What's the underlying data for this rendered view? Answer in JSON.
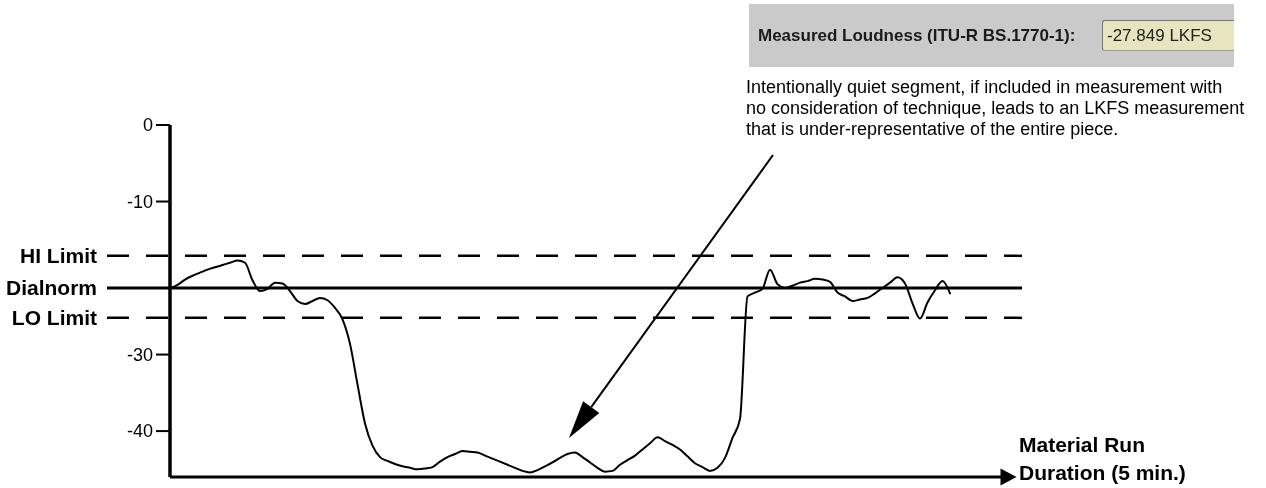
{
  "chart_data": {
    "type": "line",
    "categories": [
      null,
      null,
      null,
      null,
      null,
      null,
      null,
      null,
      null,
      null,
      null,
      null,
      null,
      null,
      null,
      null,
      null,
      null,
      null,
      null,
      null,
      null,
      null,
      null,
      null,
      null,
      null,
      null,
      null,
      null,
      null,
      null,
      null,
      null,
      null,
      null,
      null,
      null,
      null,
      null,
      null,
      null,
      null,
      null,
      null,
      null,
      null,
      null,
      null,
      null,
      null,
      null,
      null,
      null,
      null,
      null,
      null,
      null,
      null,
      null,
      null,
      null,
      null,
      null,
      null,
      null,
      null,
      null,
      null,
      null,
      null,
      null,
      null,
      null,
      null,
      null,
      null,
      null,
      null,
      null,
      null,
      null,
      null,
      null,
      null,
      null,
      null,
      null,
      null,
      null,
      null,
      null,
      null,
      null,
      null,
      null,
      null,
      null,
      null,
      null,
      null,
      null,
      null,
      null,
      null,
      null,
      null,
      null,
      null,
      null,
      null,
      null
    ],
    "values": [
      -21.3,
      -20.9,
      -20.2,
      -19.7,
      -19.3,
      -18.9,
      -18.6,
      -18.3,
      -18.0,
      -17.7,
      -18.0,
      -20.3,
      -21.7,
      -21.4,
      -20.6,
      -20.7,
      -21.7,
      -23.0,
      -23.4,
      -23.0,
      -22.6,
      -22.9,
      -23.9,
      -25.4,
      -28.6,
      -33.9,
      -39.0,
      -41.9,
      -43.4,
      -43.9,
      -44.3,
      -44.6,
      -44.8,
      -45.0,
      -44.9,
      -44.7,
      -44.0,
      -43.4,
      -43.0,
      -42.6,
      -42.7,
      -42.8,
      -43.2,
      -43.6,
      -44.0,
      -44.4,
      -44.8,
      -45.2,
      -45.4,
      -45.1,
      -44.6,
      -44.1,
      -43.5,
      -43.0,
      -42.8,
      -43.4,
      -44.1,
      -44.8,
      -45.3,
      -45.2,
      -44.4,
      -43.8,
      -43.2,
      -42.4,
      -41.6,
      -40.8,
      -41.3,
      -41.8,
      -42.4,
      -43.3,
      -44.2,
      -44.7,
      -45.2,
      -44.8,
      -43.5,
      -40.9,
      -38.4,
      -22.4,
      -21.9,
      -21.4,
      -18.9,
      -20.8,
      -21.3,
      -21.0,
      -20.6,
      -20.4,
      -20.1,
      -20.2,
      -20.5,
      -21.9,
      -22.4,
      -23.0,
      -22.8,
      -22.6,
      -22.0,
      -21.3,
      -20.6,
      -19.9,
      -20.7,
      -23.3,
      -25.3,
      -23.2,
      -21.6,
      -20.4,
      -22.0,
      null,
      null,
      null,
      null,
      null,
      null,
      null
    ],
    "color": "#000000",
    "ylim": [
      -46,
      0
    ],
    "yticks": [
      -40,
      -30,
      -10,
      0
    ],
    "tick_labels": "y",
    "ref_lines": [
      {
        "axis": "y",
        "value": -17.1,
        "label": "HI Limit",
        "line_style": "dashed",
        "color": "#000000"
      },
      {
        "axis": "y",
        "value": -21.3,
        "label": "Dialnorm",
        "line_style": "solid",
        "color": "#000000"
      },
      {
        "axis": "y",
        "value": -25.2,
        "label": "LO Limit",
        "line_style": "dashed",
        "color": "#000000"
      }
    ],
    "xlabel": "Material Run Duration (5 min.)",
    "annotations": [
      "Measured Loudness (ITU-R BS.1770-1):",
      "-27.849 LKFS",
      "Intentionally quiet segment, if included in measurement with no consideration of technique, leads to an LKFS measurement that is under-representative of the entire piece."
    ]
  }
}
